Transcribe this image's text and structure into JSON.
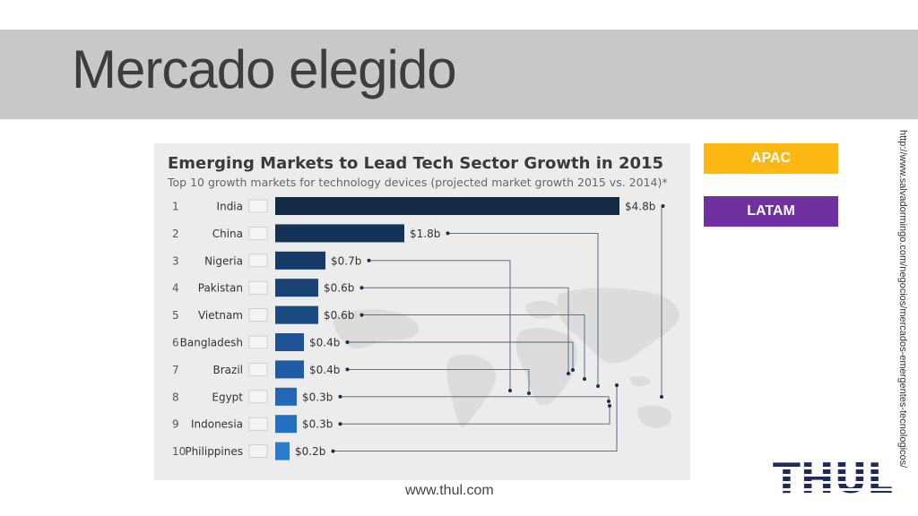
{
  "slide": {
    "title": "Mercado elegido",
    "source_url": "http://www.salvadormingo.com/negocios/mercados-emergentes-tecnologicos/",
    "footer_url": "www.thul.com",
    "logo_text": "THUL"
  },
  "tags": [
    {
      "label": "APAC",
      "color": "#fdb813"
    },
    {
      "label": "LATAM",
      "color": "#7030a0"
    }
  ],
  "chart_data": {
    "type": "bar",
    "orientation": "horizontal",
    "title": "Emerging Markets to Lead Tech Sector Growth in 2015",
    "subtitle": "Top 10 growth markets for technology devices (projected market growth 2015 vs. 2014)*",
    "ranks": [
      "1",
      "2",
      "3",
      "4",
      "5",
      "6",
      "7",
      "8",
      "9",
      "10"
    ],
    "categories": [
      "India",
      "China",
      "Nigeria",
      "Pakistan",
      "Vietnam",
      "Bangladesh",
      "Brazil",
      "Egypt",
      "Indonesia",
      "Philippines"
    ],
    "values": [
      4.8,
      1.8,
      0.7,
      0.6,
      0.6,
      0.4,
      0.4,
      0.3,
      0.3,
      0.2
    ],
    "value_labels": [
      "$4.8b",
      "$1.8b",
      "$0.7b",
      "$0.6b",
      "$0.6b",
      "$0.4b",
      "$0.4b",
      "$0.3b",
      "$0.3b",
      "$0.2b"
    ],
    "xlim": [
      0,
      4.8
    ],
    "bar_colors": [
      "#132a45",
      "#143256",
      "#163a66",
      "#184273",
      "#1a4a80",
      "#1d5393",
      "#1f5ca3",
      "#2266b5",
      "#2670c2",
      "#2a7ad0"
    ],
    "background_map": true,
    "grid": false,
    "legend": false
  }
}
